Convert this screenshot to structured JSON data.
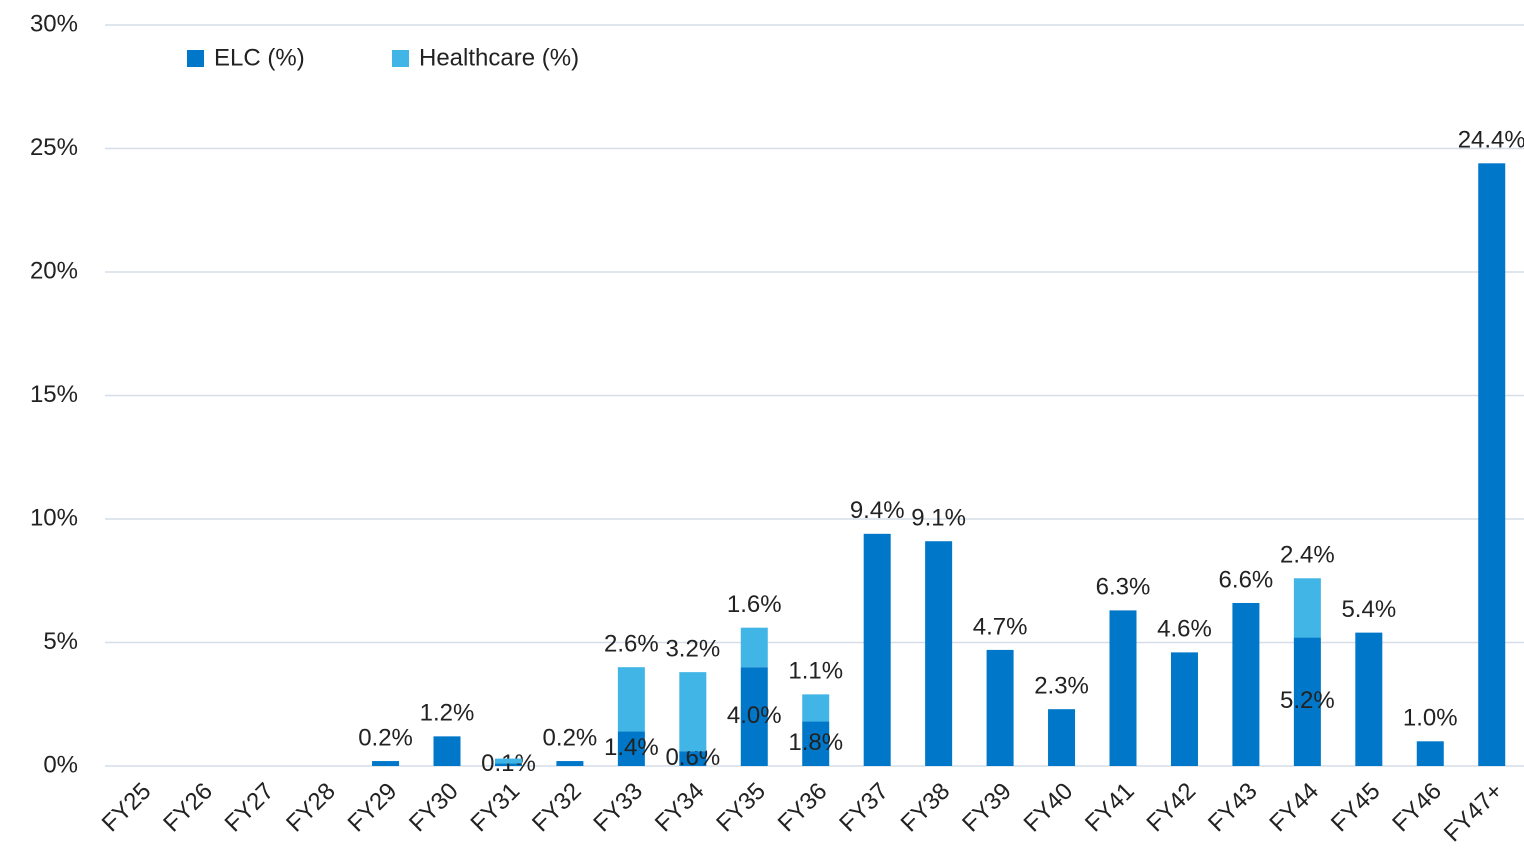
{
  "chart_data": {
    "type": "stacked_bar",
    "categories": [
      "FY25",
      "FY26",
      "FY27",
      "FY28",
      "FY29",
      "FY30",
      "FY31",
      "FY32",
      "FY33",
      "FY34",
      "FY35",
      "FY36",
      "FY37",
      "FY38",
      "FY39",
      "FY40",
      "FY41",
      "FY42",
      "FY43",
      "FY44",
      "FY45",
      "FY46",
      "FY47+"
    ],
    "series": [
      {
        "name": "ELC (%)",
        "color": "#0077c8",
        "values": [
          null,
          null,
          null,
          null,
          0.2,
          1.2,
          0.1,
          0.2,
          1.4,
          0.6,
          4.0,
          1.8,
          9.4,
          9.1,
          4.7,
          2.3,
          6.3,
          4.6,
          6.6,
          5.2,
          5.4,
          1.0,
          24.4
        ],
        "value_labels": [
          null,
          null,
          null,
          null,
          "0.2%",
          "1.2%",
          "0.1%",
          "0.2%",
          "1.4%",
          "0.6%",
          "4.0%",
          "1.8%",
          "9.4%",
          "9.1%",
          "4.7%",
          "2.3%",
          "6.3%",
          "4.6%",
          "6.6%",
          "5.2%",
          "5.4%",
          "1.0%",
          "24.4%"
        ]
      },
      {
        "name": "Healthcare (%)",
        "color": "#41b6e6",
        "values": [
          null,
          null,
          null,
          null,
          null,
          null,
          0.2,
          null,
          2.6,
          3.2,
          1.6,
          1.1,
          null,
          null,
          null,
          null,
          null,
          null,
          null,
          2.4,
          null,
          null,
          null
        ],
        "value_labels": [
          null,
          null,
          null,
          null,
          null,
          null,
          null,
          null,
          "2.6%",
          "3.2%",
          "1.6%",
          "1.1%",
          null,
          null,
          null,
          null,
          null,
          null,
          null,
          "2.4%",
          null,
          null,
          null
        ]
      }
    ],
    "ylim": [
      0,
      30
    ],
    "yticks": [
      {
        "value": 0,
        "label": "0%"
      },
      {
        "value": 5,
        "label": "5%"
      },
      {
        "value": 10,
        "label": "10%"
      },
      {
        "value": 15,
        "label": "15%"
      },
      {
        "value": 20,
        "label": "20%"
      },
      {
        "value": 25,
        "label": "25%"
      },
      {
        "value": 30,
        "label": "30%"
      }
    ],
    "grid": true,
    "legend": "top-left"
  }
}
